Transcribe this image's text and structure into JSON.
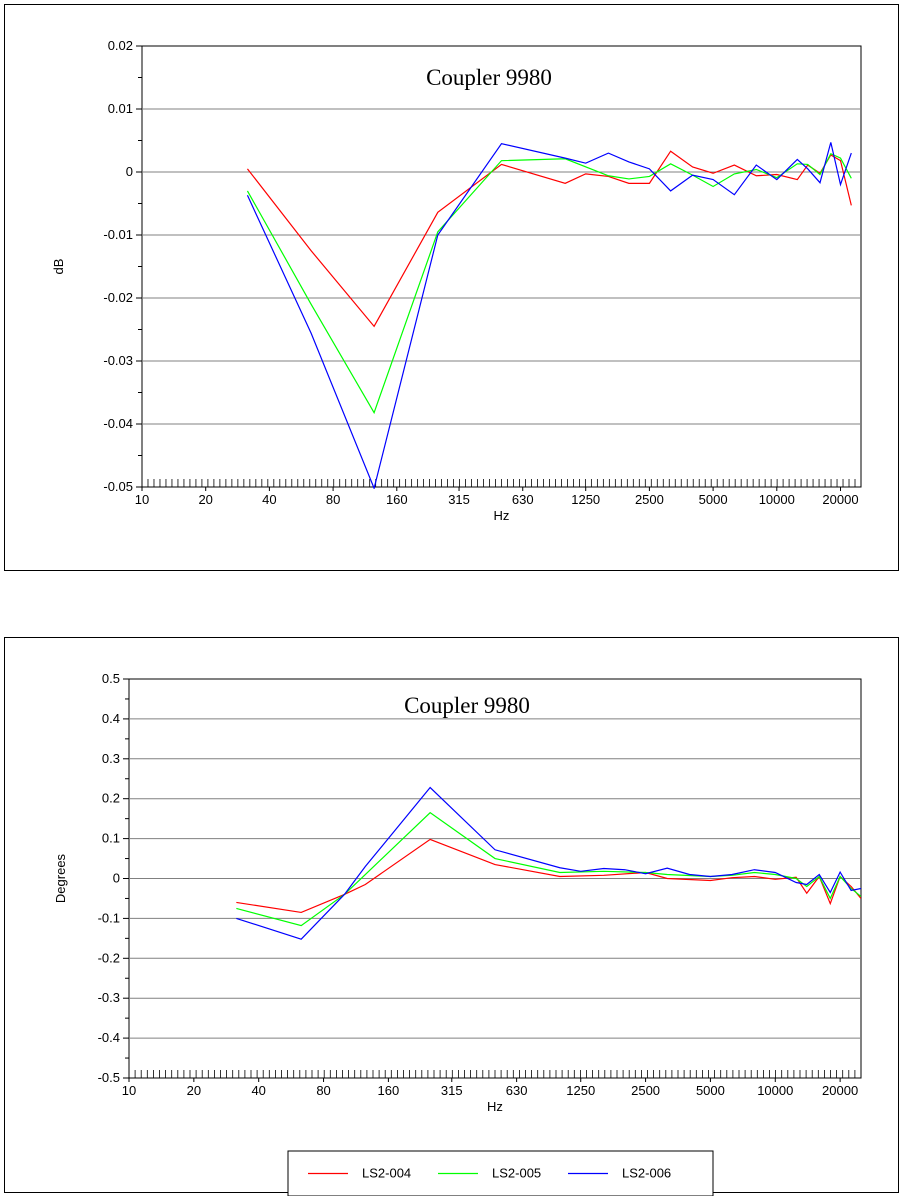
{
  "chart_data": [
    {
      "type": "line",
      "title": "Coupler 9980",
      "xlabel": "Hz",
      "ylabel": "dB",
      "xscale": "log2",
      "xlim": [
        10,
        25000
      ],
      "ylim": [
        -0.05,
        0.02
      ],
      "yticks": [
        "0.02",
        "0.01",
        "0",
        "-0.01",
        "-0.02",
        "-0.03",
        "-0.04",
        "-0.05"
      ],
      "ytick_values": [
        0.02,
        0.01,
        0,
        -0.01,
        -0.02,
        -0.03,
        -0.04,
        -0.05
      ],
      "xtick_labels": [
        "10",
        "20",
        "40",
        "80",
        "160",
        "315",
        "630",
        "1250",
        "2500",
        "5000",
        "10000",
        "20000"
      ],
      "xtick_values": [
        10,
        20,
        40,
        80,
        160,
        315,
        630,
        1250,
        2500,
        5000,
        10000,
        20000
      ],
      "grid": true,
      "series": [
        {
          "name": "LS2-004",
          "color": "#ff0000",
          "x": [
            31.5,
            63,
            125,
            250,
            500,
            1000,
            1250,
            1600,
            2000,
            2500,
            3150,
            4000,
            5000,
            6300,
            8000,
            10000,
            12500,
            14000,
            16000,
            18000,
            20000,
            22500
          ],
          "y": [
            0.0005,
            -0.0125,
            -0.0245,
            -0.0064,
            0.0012,
            -0.0018,
            -0.0003,
            -0.0007,
            -0.0018,
            -0.0018,
            0.0033,
            0.0008,
            -0.0002,
            0.0011,
            -0.0006,
            -0.0004,
            -0.0012,
            0.0011,
            -0.0002,
            0.0027,
            0.0018,
            -0.0053
          ]
        },
        {
          "name": "LS2-005",
          "color": "#00ff00",
          "x": [
            31.5,
            63,
            125,
            250,
            500,
            1000,
            1600,
            2000,
            2500,
            3150,
            4000,
            5000,
            6300,
            8000,
            10000,
            12500,
            14000,
            16000,
            18000,
            20000,
            22500
          ],
          "y": [
            -0.003,
            -0.021,
            -0.0382,
            -0.0095,
            0.0018,
            0.0021,
            -0.0006,
            -0.0011,
            -0.0007,
            0.0013,
            -0.0005,
            -0.0023,
            -0.0003,
            0.0004,
            -0.0009,
            0.0013,
            0.0012,
            -0.0004,
            0.0029,
            0.0022,
            -0.001
          ]
        },
        {
          "name": "LS2-006",
          "color": "#0000ff",
          "x": [
            31.5,
            63,
            125,
            250,
            500,
            1000,
            1250,
            1600,
            2000,
            2500,
            3150,
            4000,
            5000,
            6300,
            8000,
            10000,
            12500,
            14000,
            16000,
            18000,
            20000,
            22500
          ],
          "y": [
            -0.0037,
            -0.0256,
            -0.0502,
            -0.01,
            0.0045,
            0.0022,
            0.0014,
            0.003,
            0.0016,
            0.0005,
            -0.003,
            -0.0005,
            -0.0012,
            -0.0036,
            0.0011,
            -0.0012,
            0.002,
            0.0005,
            -0.0017,
            0.0047,
            -0.002,
            0.003
          ]
        }
      ]
    },
    {
      "type": "line",
      "title": "Coupler 9980",
      "xlabel": "Hz",
      "ylabel": "Degrees",
      "xscale": "log2",
      "xlim": [
        10,
        25000
      ],
      "ylim": [
        -0.5,
        0.5
      ],
      "yticks": [
        "0.5",
        "0.4",
        "0.3",
        "0.2",
        "0.1",
        "0",
        "-0.1",
        "-0.2",
        "-0.3",
        "-0.4",
        "-0.5"
      ],
      "ytick_values": [
        0.5,
        0.4,
        0.3,
        0.2,
        0.1,
        0,
        -0.1,
        -0.2,
        -0.3,
        -0.4,
        -0.5
      ],
      "xtick_labels": [
        "10",
        "20",
        "40",
        "80",
        "160",
        "315",
        "630",
        "1250",
        "2500",
        "5000",
        "10000",
        "20000"
      ],
      "xtick_values": [
        10,
        20,
        40,
        80,
        160,
        315,
        630,
        1250,
        2500,
        5000,
        10000,
        20000
      ],
      "grid": true,
      "legend": {
        "position": "bottom",
        "entries": [
          "LS2-004",
          "LS2-005",
          "LS2-006"
        ]
      },
      "series": [
        {
          "name": "LS2-004",
          "color": "#ff0000",
          "x": [
            31.5,
            63,
            100,
            125,
            250,
            500,
            1000,
            1600,
            2500,
            3150,
            5000,
            6300,
            8000,
            10000,
            12500,
            14000,
            16000,
            18000,
            20000,
            22500,
            25000
          ],
          "y": [
            -0.06,
            -0.085,
            -0.04,
            -0.015,
            0.098,
            0.035,
            0.005,
            0.008,
            0.015,
            0.0,
            -0.005,
            0.002,
            0.005,
            -0.002,
            0.003,
            -0.037,
            0.005,
            -0.063,
            0.005,
            -0.02,
            -0.05
          ]
        },
        {
          "name": "LS2-005",
          "color": "#00ff00",
          "x": [
            31.5,
            63,
            100,
            125,
            250,
            500,
            1000,
            1600,
            2500,
            3150,
            5000,
            6300,
            8000,
            10000,
            12500,
            14000,
            16000,
            18000,
            20000,
            22500,
            25000
          ],
          "y": [
            -0.075,
            -0.118,
            -0.04,
            0.01,
            0.165,
            0.05,
            0.015,
            0.018,
            0.015,
            0.01,
            0.005,
            0.008,
            0.015,
            0.01,
            0.0,
            -0.02,
            0.005,
            -0.05,
            0.005,
            -0.025,
            -0.045
          ]
        },
        {
          "name": "LS2-006",
          "color": "#0000ff",
          "x": [
            31.5,
            63,
            100,
            125,
            250,
            500,
            1000,
            1250,
            1600,
            2000,
            2500,
            3150,
            4000,
            5000,
            6300,
            8000,
            10000,
            12500,
            14000,
            16000,
            18000,
            20000,
            22500,
            25000
          ],
          "y": [
            -0.1,
            -0.152,
            -0.04,
            0.03,
            0.228,
            0.072,
            0.027,
            0.018,
            0.025,
            0.022,
            0.012,
            0.026,
            0.01,
            0.005,
            0.01,
            0.022,
            0.015,
            -0.01,
            -0.015,
            0.01,
            -0.035,
            0.016,
            -0.03,
            -0.025
          ]
        }
      ]
    }
  ]
}
